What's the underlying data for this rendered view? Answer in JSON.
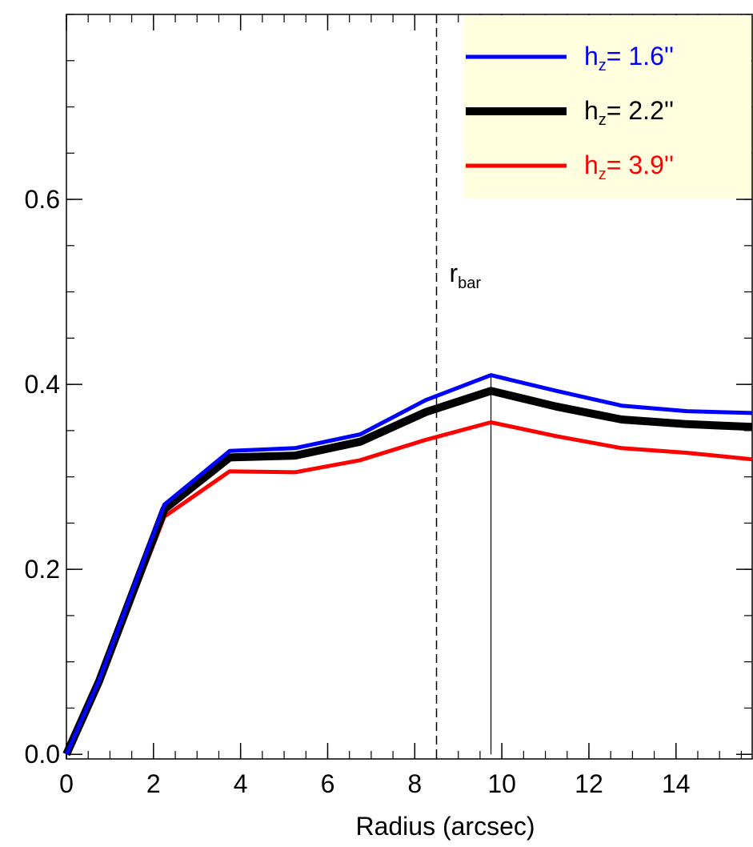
{
  "chart_data": {
    "type": "line",
    "title": "",
    "xlabel": "Radius (arcsec)",
    "ylabel": "",
    "xlim": [
      0,
      15.75
    ],
    "ylim": [
      -0.005,
      0.8
    ],
    "x_ticks": [
      0,
      2,
      4,
      6,
      8,
      10,
      12,
      14
    ],
    "x_tick_labels": [
      "0",
      "2",
      "4",
      "6",
      "8",
      "10",
      "12",
      "14"
    ],
    "x_minor_step": 0.5,
    "y_ticks": [
      0.0,
      0.2,
      0.4,
      0.6
    ],
    "y_tick_labels": [
      "0.0",
      "0.2",
      "0.4",
      "0.6"
    ],
    "y_minor_step": 0.05,
    "grid": false,
    "legend_position": "top-right",
    "legend_background": "#FFFFE0",
    "series": [
      {
        "name_base": "h",
        "name_sub": "z",
        "name_value": "=   1.6''",
        "color": "#0000FF",
        "width": 5,
        "x": [
          0,
          0.75,
          2.25,
          3.75,
          5.25,
          6.75,
          8.25,
          9.75,
          11.25,
          12.75,
          14.25,
          15.75
        ],
        "y": [
          0.0,
          0.08,
          0.27,
          0.328,
          0.331,
          0.346,
          0.383,
          0.41,
          0.393,
          0.377,
          0.371,
          0.369
        ]
      },
      {
        "name_base": "h",
        "name_sub": "z",
        "name_value": "=   2.2''",
        "color": "#000000",
        "width": 10,
        "x": [
          0,
          0.75,
          2.25,
          3.75,
          5.25,
          6.75,
          8.25,
          9.75,
          11.25,
          12.75,
          14.25,
          15.75
        ],
        "y": [
          0.0,
          0.079,
          0.265,
          0.321,
          0.323,
          0.338,
          0.37,
          0.393,
          0.376,
          0.362,
          0.357,
          0.354
        ]
      },
      {
        "name_base": "h",
        "name_sub": "z",
        "name_value": "=   3.9''",
        "color": "#FF0000",
        "width": 5,
        "x": [
          0,
          0.75,
          2.25,
          3.75,
          5.25,
          6.75,
          8.25,
          9.75,
          11.25,
          12.75,
          14.25,
          15.75
        ],
        "y": [
          0.0,
          0.076,
          0.257,
          0.306,
          0.305,
          0.318,
          0.34,
          0.359,
          0.344,
          0.331,
          0.326,
          0.319
        ]
      }
    ],
    "reference_lines": [
      {
        "x": 8.5,
        "style": "dashed",
        "label_base": "r",
        "label_sub": "bar"
      },
      {
        "x": 9.75,
        "style": "solid",
        "from_y": 0,
        "to_series": 0
      }
    ]
  }
}
